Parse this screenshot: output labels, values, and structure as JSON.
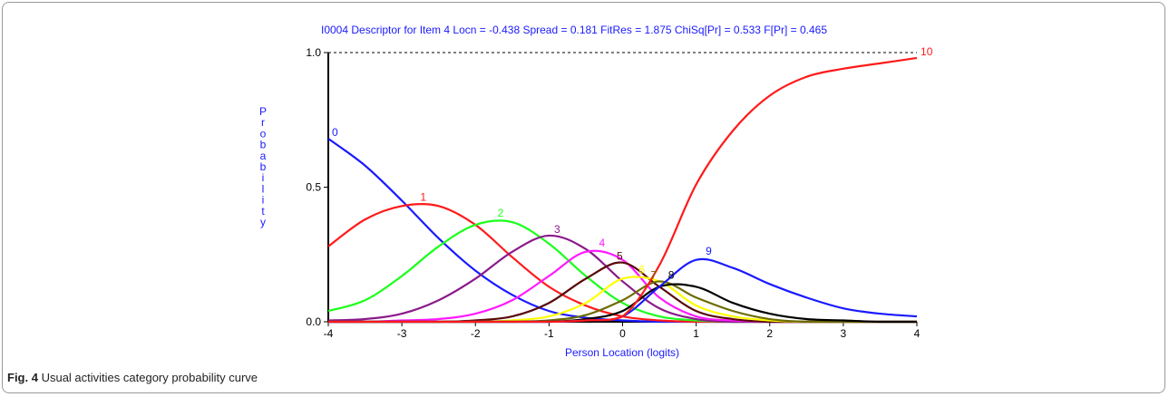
{
  "figure": {
    "caption_label": "Fig. 4",
    "caption_text": "Usual activities category probability curve"
  },
  "chart_data": {
    "type": "line",
    "title": "I0004  Descriptor for Item 4     Locn = -0.438     Spread = 0.181     FitRes = 1.875     ChiSq[Pr] = 0.533     F[Pr] = 0.465",
    "xlabel": "Person Location (logits)",
    "ylabel": "Probability",
    "xlim": [
      -4,
      4
    ],
    "ylim": [
      0,
      1
    ],
    "x_ticks": [
      "-4",
      "-3",
      "-2",
      "-1",
      "0",
      "1",
      "2",
      "3",
      "4"
    ],
    "y_ticks": [
      "0.0",
      "0.5",
      "1.0"
    ],
    "reference_line": {
      "y": 1.0,
      "style": "dashed",
      "color": "#000000"
    },
    "x": [
      -4.0,
      -3.5,
      -3.0,
      -2.5,
      -2.0,
      -1.5,
      -1.0,
      -0.5,
      0.0,
      0.5,
      1.0,
      1.5,
      2.0,
      2.5,
      3.0,
      3.5,
      4.0
    ],
    "series": [
      {
        "name": "0",
        "color": "#1a1aff",
        "label_at": [
          -3.95,
          0.69
        ],
        "values": [
          0.68,
          0.58,
          0.45,
          0.31,
          0.19,
          0.1,
          0.04,
          0.015,
          0.005,
          0.0,
          0.0,
          0.0,
          0.0,
          0.0,
          0.0,
          0.0,
          0.0
        ]
      },
      {
        "name": "1",
        "color": "#ff1a1a",
        "label_at": [
          -2.75,
          0.45
        ],
        "values": [
          0.28,
          0.38,
          0.43,
          0.43,
          0.36,
          0.24,
          0.13,
          0.06,
          0.02,
          0.005,
          0.0,
          0.0,
          0.0,
          0.0,
          0.0,
          0.0,
          0.0
        ]
      },
      {
        "name": "2",
        "color": "#1aff1a",
        "label_at": [
          -1.7,
          0.39
        ],
        "values": [
          0.04,
          0.08,
          0.17,
          0.28,
          0.36,
          0.37,
          0.29,
          0.17,
          0.07,
          0.02,
          0.005,
          0.0,
          0.0,
          0.0,
          0.0,
          0.0,
          0.0
        ]
      },
      {
        "name": "3",
        "color": "#8b1a8b",
        "label_at": [
          -0.93,
          0.33
        ],
        "values": [
          0.005,
          0.01,
          0.03,
          0.08,
          0.16,
          0.26,
          0.32,
          0.27,
          0.15,
          0.05,
          0.01,
          0.0,
          0.0,
          0.0,
          0.0,
          0.0,
          0.0
        ]
      },
      {
        "name": "4",
        "color": "#ff1aff",
        "label_at": [
          -0.32,
          0.28
        ],
        "values": [
          0.0,
          0.0,
          0.005,
          0.01,
          0.03,
          0.08,
          0.17,
          0.26,
          0.23,
          0.09,
          0.02,
          0.005,
          0.0,
          0.0,
          0.0,
          0.0,
          0.0
        ]
      },
      {
        "name": "5",
        "color": "#5a0a0a",
        "label_at": [
          -0.08,
          0.23
        ],
        "values": [
          0.0,
          0.0,
          0.0,
          0.0,
          0.005,
          0.02,
          0.07,
          0.16,
          0.22,
          0.13,
          0.04,
          0.01,
          0.0,
          0.0,
          0.0,
          0.0,
          0.0
        ]
      },
      {
        "name": "6",
        "color": "#ffff00",
        "label_at": [
          0.22,
          0.18
        ],
        "values": [
          0.0,
          0.0,
          0.0,
          0.0,
          0.0,
          0.005,
          0.02,
          0.07,
          0.16,
          0.15,
          0.06,
          0.02,
          0.005,
          0.0,
          0.0,
          0.0,
          0.0
        ]
      },
      {
        "name": "7",
        "color": "#6b6b00",
        "label_at": [
          0.38,
          0.16
        ],
        "values": [
          0.0,
          0.0,
          0.0,
          0.0,
          0.0,
          0.0,
          0.005,
          0.025,
          0.08,
          0.15,
          0.09,
          0.04,
          0.01,
          0.0,
          0.0,
          0.0,
          0.0
        ]
      },
      {
        "name": "8",
        "color": "#000000",
        "label_at": [
          0.62,
          0.16
        ],
        "values": [
          0.0,
          0.0,
          0.0,
          0.0,
          0.0,
          0.0,
          0.0,
          0.01,
          0.04,
          0.13,
          0.13,
          0.07,
          0.03,
          0.01,
          0.005,
          0.0,
          0.0
        ]
      },
      {
        "name": "9",
        "color": "#1a1aff",
        "label_at": [
          1.13,
          0.25
        ],
        "values": [
          0.0,
          0.0,
          0.0,
          0.0,
          0.0,
          0.0,
          0.0,
          0.005,
          0.02,
          0.13,
          0.23,
          0.2,
          0.14,
          0.09,
          0.05,
          0.03,
          0.02
        ]
      },
      {
        "name": "10",
        "color": "#ff1a1a",
        "label_at": [
          4.05,
          0.99
        ],
        "values": [
          0.0,
          0.0,
          0.0,
          0.0,
          0.0,
          0.0,
          0.0,
          0.005,
          0.02,
          0.21,
          0.51,
          0.71,
          0.84,
          0.91,
          0.94,
          0.96,
          0.98
        ]
      }
    ]
  }
}
